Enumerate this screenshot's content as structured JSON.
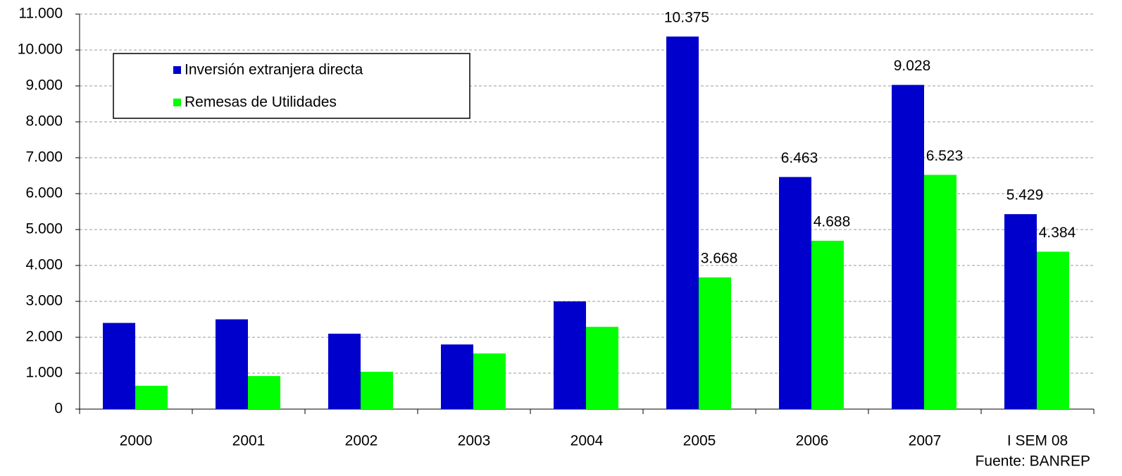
{
  "chart_data": {
    "type": "bar",
    "categories": [
      "2000",
      "2001",
      "2002",
      "2003",
      "2004",
      "2005",
      "2006",
      "2007",
      "I SEM 08"
    ],
    "series": [
      {
        "name": "Inversión extranjera directa",
        "color": "#0000cc",
        "values": [
          2400,
          2500,
          2100,
          1800,
          3000,
          10375,
          6463,
          9028,
          5429
        ],
        "value_labels": [
          null,
          null,
          null,
          null,
          null,
          "10.375",
          "6.463",
          "9.028",
          "5.429"
        ]
      },
      {
        "name": "Remesas de Utilidades",
        "color": "#00ff00",
        "values": [
          650,
          920,
          1040,
          1550,
          2290,
          3668,
          4688,
          6523,
          4384
        ],
        "value_labels": [
          null,
          null,
          null,
          null,
          null,
          "3.668",
          "4.688",
          "6.523",
          "4.384"
        ]
      }
    ],
    "ylim": [
      0,
      11000
    ],
    "yticks": [
      0,
      {
        "value": 1000,
        "label": "1.000"
      },
      {
        "value": 2000,
        "label": "2.000"
      },
      {
        "value": 3000,
        "label": "3.000"
      },
      {
        "value": 4000,
        "label": "4.000"
      },
      {
        "value": 5000,
        "label": "5.000"
      },
      {
        "value": 6000,
        "label": "6.000"
      },
      {
        "value": 7000,
        "label": "7.000"
      },
      {
        "value": 8000,
        "label": "8.000"
      },
      {
        "value": 9000,
        "label": "9.000"
      },
      {
        "value": 10000,
        "label": "10.000"
      },
      {
        "value": 11000,
        "label": "11.000"
      }
    ],
    "grid": true,
    "legend": "top-left",
    "source": "Fuente: BANREP"
  }
}
